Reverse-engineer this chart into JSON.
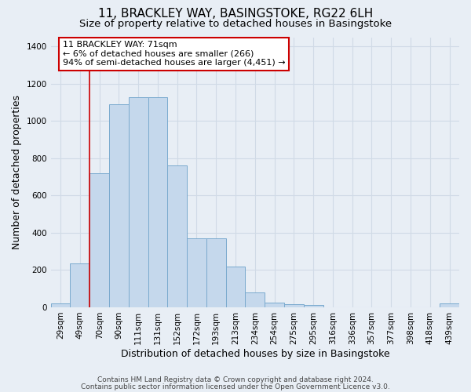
{
  "title": "11, BRACKLEY WAY, BASINGSTOKE, RG22 6LH",
  "subtitle": "Size of property relative to detached houses in Basingstoke",
  "xlabel": "Distribution of detached houses by size in Basingstoke",
  "ylabel": "Number of detached properties",
  "categories": [
    "29sqm",
    "49sqm",
    "70sqm",
    "90sqm",
    "111sqm",
    "131sqm",
    "152sqm",
    "172sqm",
    "193sqm",
    "213sqm",
    "234sqm",
    "254sqm",
    "275sqm",
    "295sqm",
    "316sqm",
    "336sqm",
    "357sqm",
    "377sqm",
    "398sqm",
    "418sqm",
    "439sqm"
  ],
  "values": [
    20,
    235,
    720,
    1090,
    1130,
    1130,
    760,
    370,
    370,
    220,
    80,
    25,
    15,
    12,
    0,
    0,
    0,
    0,
    0,
    0,
    20
  ],
  "bar_color": "#c5d8ec",
  "bar_edge_color": "#7aaace",
  "vline_color": "#cc0000",
  "vline_pos": 1.5,
  "annotation_text": "11 BRACKLEY WAY: 71sqm\n← 6% of detached houses are smaller (266)\n94% of semi-detached houses are larger (4,451) →",
  "annotation_box_edgecolor": "#cc0000",
  "ylim_max": 1450,
  "yticks": [
    0,
    200,
    400,
    600,
    800,
    1000,
    1200,
    1400
  ],
  "footer1": "Contains HM Land Registry data © Crown copyright and database right 2024.",
  "footer2": "Contains public sector information licensed under the Open Government Licence v3.0.",
  "bg_color": "#e8eef5",
  "grid_color": "#d0dae6",
  "title_fontsize": 11,
  "subtitle_fontsize": 9.5,
  "axis_label_fontsize": 9,
  "tick_fontsize": 7.5,
  "ann_fontsize": 8,
  "footer_fontsize": 6.5
}
